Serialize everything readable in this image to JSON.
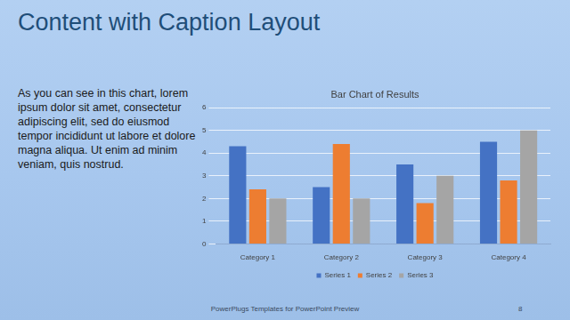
{
  "slide": {
    "title": "Content with Caption Layout",
    "caption": "As you can see in this chart, lorem ipsum dolor sit amet, consectetur adipiscing elit, sed do eiusmod tempor incididunt ut labore et dolore magna aliqua. Ut enim ad minim veniam, quis nostrud.",
    "footer": "PowerPlugs Templates for PowerPoint Preview",
    "page_number": 8
  },
  "chart_data": {
    "type": "bar",
    "title": "Bar Chart of Results",
    "categories": [
      "Category 1",
      "Category 2",
      "Category 3",
      "Category 4"
    ],
    "series": [
      {
        "name": "Series 1",
        "color": "#4472c4",
        "values": [
          4.3,
          2.5,
          3.5,
          4.5
        ]
      },
      {
        "name": "Series 2",
        "color": "#ed7d31",
        "values": [
          2.4,
          4.4,
          1.8,
          2.8
        ]
      },
      {
        "name": "Series 3",
        "color": "#a5a5a5",
        "values": [
          2,
          2,
          3,
          5
        ]
      }
    ],
    "ylim": [
      0,
      6
    ],
    "yticks": [
      0,
      1,
      2,
      3,
      4,
      5,
      6
    ],
    "grid": true,
    "legend": "bottom"
  }
}
